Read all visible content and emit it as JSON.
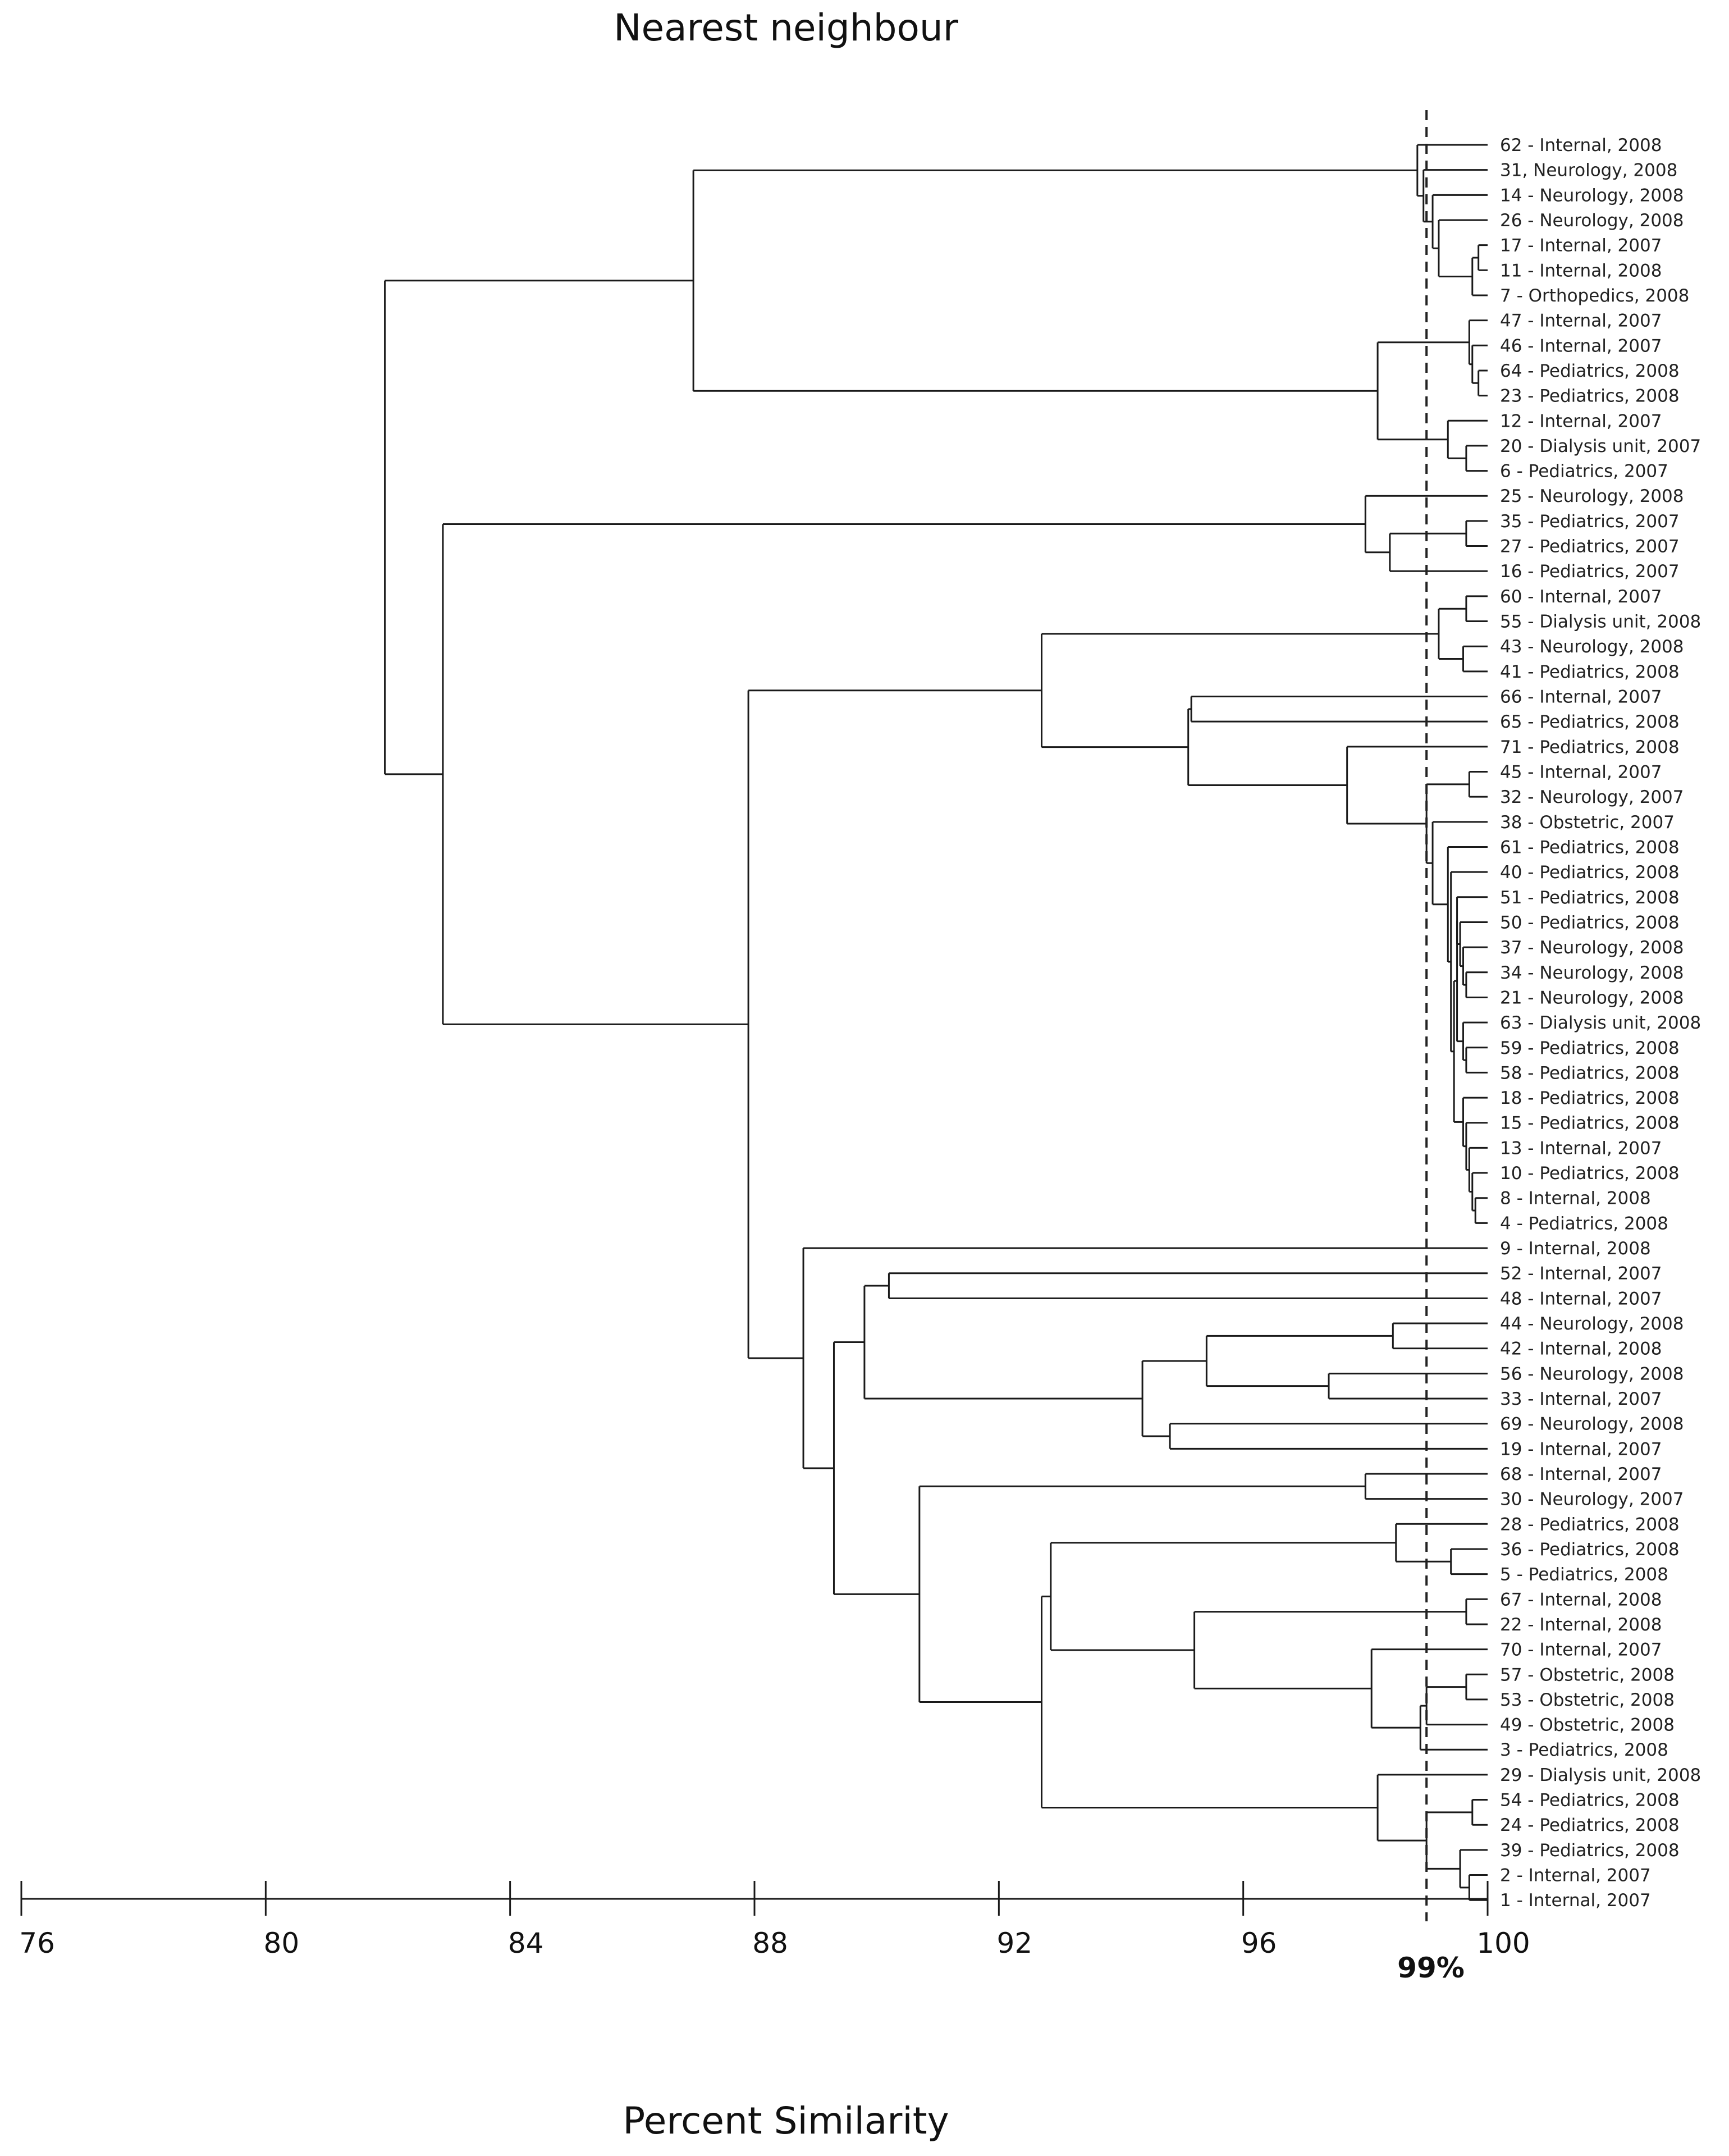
{
  "chart_data": {
    "type": "dendrogram",
    "title": "Nearest neighbour",
    "xlabel": "Percent Similarity",
    "xlim": [
      76,
      100
    ],
    "xticks": [
      76,
      80,
      84,
      88,
      92,
      96,
      100
    ],
    "cutoff": {
      "value": 99,
      "label": "99%"
    },
    "leaves": [
      "62 - Internal, 2008",
      "31, Neurology, 2008",
      "14 - Neurology, 2008",
      "26 - Neurology, 2008",
      "17 - Internal, 2007",
      "11 - Internal, 2008",
      "7 - Orthopedics, 2008",
      "47 - Internal, 2007",
      "46 - Internal, 2007",
      "64 - Pediatrics, 2008",
      "23 - Pediatrics, 2008",
      "12 - Internal, 2007",
      "20 - Dialysis unit, 2007",
      "6 - Pediatrics, 2007",
      "25 - Neurology, 2008",
      "35 - Pediatrics, 2007",
      "27 - Pediatrics, 2007",
      "16 - Pediatrics, 2007",
      "60 - Internal, 2007",
      "55 - Dialysis unit, 2008",
      "43 - Neurology, 2008",
      "41 - Pediatrics, 2008",
      "66 - Internal, 2007",
      "65 - Pediatrics, 2008",
      "71 - Pediatrics, 2008",
      "45 - Internal, 2007",
      "32 - Neurology, 2007",
      "38 - Obstetric, 2007",
      "61 - Pediatrics, 2008",
      "40 - Pediatrics, 2008",
      "51 - Pediatrics, 2008",
      "50 - Pediatrics, 2008",
      "37 - Neurology, 2008",
      "34 - Neurology, 2008",
      "21 - Neurology, 2008",
      "63 - Dialysis unit, 2008",
      "59 - Pediatrics, 2008",
      "58 - Pediatrics, 2008",
      "18 - Pediatrics, 2008",
      "15 - Pediatrics, 2008",
      "13 - Internal, 2007",
      "10 - Pediatrics, 2008",
      "8 - Internal, 2008",
      "4 - Pediatrics, 2008",
      "9 - Internal, 2008",
      "52 - Internal, 2007",
      "48 - Internal, 2007",
      "44 - Neurology, 2008",
      "42 - Internal, 2008",
      "56 - Neurology, 2008",
      "33 - Internal, 2007",
      "69  - Neurology, 2008",
      "19 - Internal, 2007",
      "68 - Internal, 2007",
      "30 - Neurology, 2007",
      "28 - Pediatrics, 2008",
      "36 - Pediatrics, 2008",
      "5 - Pediatrics, 2008",
      "67 - Internal, 2008",
      "22 - Internal, 2008",
      "70 - Internal, 2007",
      "57 - Obstetric, 2008",
      "53 - Obstetric, 2008",
      "49 - Obstetric, 2008",
      "3 - Pediatrics, 2008",
      "29 - Dialysis unit, 2008",
      "54 - Pediatrics, 2008",
      "24 - Pediatrics, 2008",
      "39 - Pediatrics, 2008",
      "2 - Internal, 2007",
      "1 - Internal, 2007"
    ],
    "merges": [
      {
        "id": "A0",
        "children": [
          "L4",
          "L5"
        ],
        "h": 99.85
      },
      {
        "id": "A1",
        "children": [
          "A0",
          "L6"
        ],
        "h": 99.75
      },
      {
        "id": "A2",
        "children": [
          "L3",
          "A1"
        ],
        "h": 99.2
      },
      {
        "id": "A3",
        "children": [
          "L2",
          "A2"
        ],
        "h": 99.1
      },
      {
        "id": "A4",
        "children": [
          "L1",
          "A3"
        ],
        "h": 98.95
      },
      {
        "id": "A5",
        "children": [
          "L0",
          "A4"
        ],
        "h": 98.85
      },
      {
        "id": "B0",
        "children": [
          "L9",
          "L10"
        ],
        "h": 99.85
      },
      {
        "id": "B1",
        "children": [
          "L8",
          "B0"
        ],
        "h": 99.75
      },
      {
        "id": "B2",
        "children": [
          "L7",
          "B1"
        ],
        "h": 99.7
      },
      {
        "id": "B3",
        "children": [
          "L12",
          "L13"
        ],
        "h": 99.65
      },
      {
        "id": "B4",
        "children": [
          "L11",
          "B3"
        ],
        "h": 99.35
      },
      {
        "id": "B5",
        "children": [
          "B2",
          "B4"
        ],
        "h": 98.2
      },
      {
        "id": "AB",
        "children": [
          "A5",
          "B5"
        ],
        "h": 87.0
      },
      {
        "id": "C0",
        "children": [
          "L15",
          "L16"
        ],
        "h": 99.65
      },
      {
        "id": "C1",
        "children": [
          "C0",
          "L17"
        ],
        "h": 98.4
      },
      {
        "id": "C2",
        "children": [
          "L14",
          "C1"
        ],
        "h": 98.0
      },
      {
        "id": "D0",
        "children": [
          "L18",
          "L19"
        ],
        "h": 99.65
      },
      {
        "id": "D1",
        "children": [
          "L20",
          "L21"
        ],
        "h": 99.6
      },
      {
        "id": "D2",
        "children": [
          "D0",
          "D1"
        ],
        "h": 99.2
      },
      {
        "id": "E0",
        "children": [
          "L25",
          "L26"
        ],
        "h": 99.7
      },
      {
        "id": "F0",
        "children": [
          "L33",
          "L34"
        ],
        "h": 99.65
      },
      {
        "id": "F1",
        "children": [
          "L32",
          "F0"
        ],
        "h": 99.6
      },
      {
        "id": "F2",
        "children": [
          "L31",
          "F1"
        ],
        "h": 99.55
      },
      {
        "id": "F3",
        "children": [
          "L30",
          "F2"
        ],
        "h": 99.5
      },
      {
        "id": "G0",
        "children": [
          "L36",
          "L37"
        ],
        "h": 99.65
      },
      {
        "id": "G1",
        "children": [
          "L35",
          "G0"
        ],
        "h": 99.6
      },
      {
        "id": "H0",
        "children": [
          "L42",
          "L43"
        ],
        "h": 99.8
      },
      {
        "id": "H1",
        "children": [
          "L41",
          "H0"
        ],
        "h": 99.75
      },
      {
        "id": "H2",
        "children": [
          "L40",
          "H1"
        ],
        "h": 99.7
      },
      {
        "id": "H3",
        "children": [
          "L39",
          "H2"
        ],
        "h": 99.65
      },
      {
        "id": "H4",
        "children": [
          "L38",
          "H3"
        ],
        "h": 99.6
      },
      {
        "id": "FG",
        "children": [
          "F3",
          "G1"
        ],
        "h": 99.5
      },
      {
        "id": "FH",
        "children": [
          "FG",
          "H4"
        ],
        "h": 99.45
      },
      {
        "id": "E1",
        "children": [
          "L29",
          "FH"
        ],
        "h": 99.4
      },
      {
        "id": "E2",
        "children": [
          "L28",
          "E1"
        ],
        "h": 99.35
      },
      {
        "id": "E3",
        "children": [
          "L27",
          "E2"
        ],
        "h": 99.1
      },
      {
        "id": "E4",
        "children": [
          "E0",
          "E3"
        ],
        "h": 99.0
      },
      {
        "id": "E5",
        "children": [
          "L24",
          "E4"
        ],
        "h": 97.7
      },
      {
        "id": "E6",
        "children": [
          "L22",
          "L23"
        ],
        "h": 95.15
      },
      {
        "id": "E7",
        "children": [
          "E6",
          "E5"
        ],
        "h": 95.1
      },
      {
        "id": "DE",
        "children": [
          "D2",
          "E7"
        ],
        "h": 92.7
      },
      {
        "id": "I0",
        "children": [
          "L45",
          "L46"
        ],
        "h": 90.2
      },
      {
        "id": "I1",
        "children": [
          "L47",
          "L48"
        ],
        "h": 98.45
      },
      {
        "id": "I2",
        "children": [
          "L49",
          "L50"
        ],
        "h": 97.4
      },
      {
        "id": "I3",
        "children": [
          "I1",
          "I2"
        ],
        "h": 95.4
      },
      {
        "id": "I4",
        "children": [
          "L51",
          "L52"
        ],
        "h": 94.8
      },
      {
        "id": "I5",
        "children": [
          "I3",
          "I4"
        ],
        "h": 94.35
      },
      {
        "id": "I6",
        "children": [
          "I0",
          "I5"
        ],
        "h": 89.8
      },
      {
        "id": "J0",
        "children": [
          "L53",
          "L54"
        ],
        "h": 98.0
      },
      {
        "id": "K0",
        "children": [
          "L56",
          "L57"
        ],
        "h": 99.4
      },
      {
        "id": "K1",
        "children": [
          "L55",
          "K0"
        ],
        "h": 98.5
      },
      {
        "id": "K2",
        "children": [
          "L58",
          "L59"
        ],
        "h": 99.65
      },
      {
        "id": "K3",
        "children": [
          "L61",
          "L62"
        ],
        "h": 99.65
      },
      {
        "id": "K4",
        "children": [
          "K3",
          "L63"
        ],
        "h": 99.0
      },
      {
        "id": "K5",
        "children": [
          "K4",
          "L64"
        ],
        "h": 98.9
      },
      {
        "id": "K6",
        "children": [
          "L60",
          "K5"
        ],
        "h": 98.1
      },
      {
        "id": "K7",
        "children": [
          "K2",
          "K6"
        ],
        "h": 95.2
      },
      {
        "id": "K8",
        "children": [
          "K1",
          "K7"
        ],
        "h": 92.85
      },
      {
        "id": "M0",
        "children": [
          "L66",
          "L67"
        ],
        "h": 99.75
      },
      {
        "id": "M1",
        "children": [
          "L69",
          "L70"
        ],
        "h": 99.7
      },
      {
        "id": "M2",
        "children": [
          "L68",
          "M1"
        ],
        "h": 99.55
      },
      {
        "id": "M3",
        "children": [
          "M0",
          "M2"
        ],
        "h": 99.0
      },
      {
        "id": "M4",
        "children": [
          "L65",
          "M3"
        ],
        "h": 98.2
      },
      {
        "id": "K9",
        "children": [
          "K8",
          "M4"
        ],
        "h": 92.7
      },
      {
        "id": "J1",
        "children": [
          "J0",
          "K9"
        ],
        "h": 90.7
      },
      {
        "id": "J2",
        "children": [
          "I6",
          "J1"
        ],
        "h": 89.3
      },
      {
        "id": "J3",
        "children": [
          "L44",
          "J2"
        ],
        "h": 88.8
      },
      {
        "id": "DJ",
        "children": [
          "DE",
          "J3"
        ],
        "h": 87.9
      },
      {
        "id": "CD",
        "children": [
          "C2",
          "DJ"
        ],
        "h": 82.9
      },
      {
        "id": "ROOT",
        "children": [
          "AB",
          "CD"
        ],
        "h": 81.95
      }
    ]
  }
}
